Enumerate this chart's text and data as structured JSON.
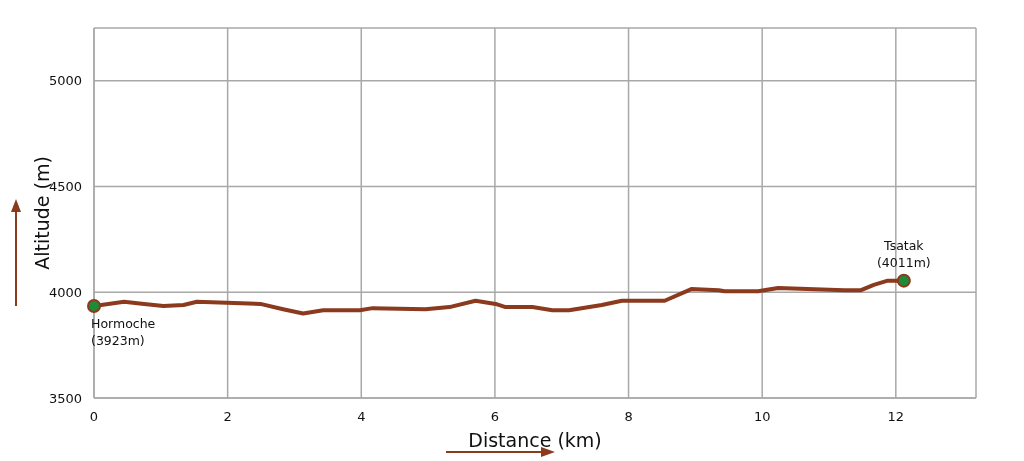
{
  "chart_data": {
    "type": "line",
    "xlabel": "Distance (km)",
    "ylabel": "Altitude (m)",
    "x": [
      0,
      0.45,
      0.75,
      1.04,
      1.34,
      1.54,
      2.49,
      2.83,
      3.13,
      3.43,
      3.98,
      4.17,
      4.96,
      5.32,
      5.71,
      6.01,
      6.16,
      6.56,
      6.86,
      7.11,
      7.6,
      7.9,
      8.54,
      8.94,
      9.35,
      9.44,
      9.94,
      10.24,
      11.23,
      11.48,
      11.67,
      11.88,
      12.12
    ],
    "series": [
      {
        "color": "#8b3a1e",
        "values": [
          3935,
          3955,
          3945,
          3935,
          3940,
          3955,
          3945,
          3920,
          3900,
          3915,
          3915,
          3925,
          3920,
          3930,
          3960,
          3945,
          3930,
          3930,
          3915,
          3915,
          3940,
          3960,
          3960,
          4015,
          4010,
          4005,
          4005,
          4020,
          4010,
          4010,
          4035,
          4055,
          4055
        ]
      }
    ],
    "xlim": [
      0,
      13.2
    ],
    "xticks": [
      0,
      2,
      4,
      6,
      8,
      10,
      12
    ],
    "ylim": [
      3500,
      5250
    ],
    "yticks": [
      3500,
      4000,
      4500,
      5000
    ],
    "grid": true,
    "marker": "none",
    "line_style": "solid",
    "annotations": [
      "Hormoche\n(3923m)",
      "Tsatak\n(4011m)"
    ]
  }
}
